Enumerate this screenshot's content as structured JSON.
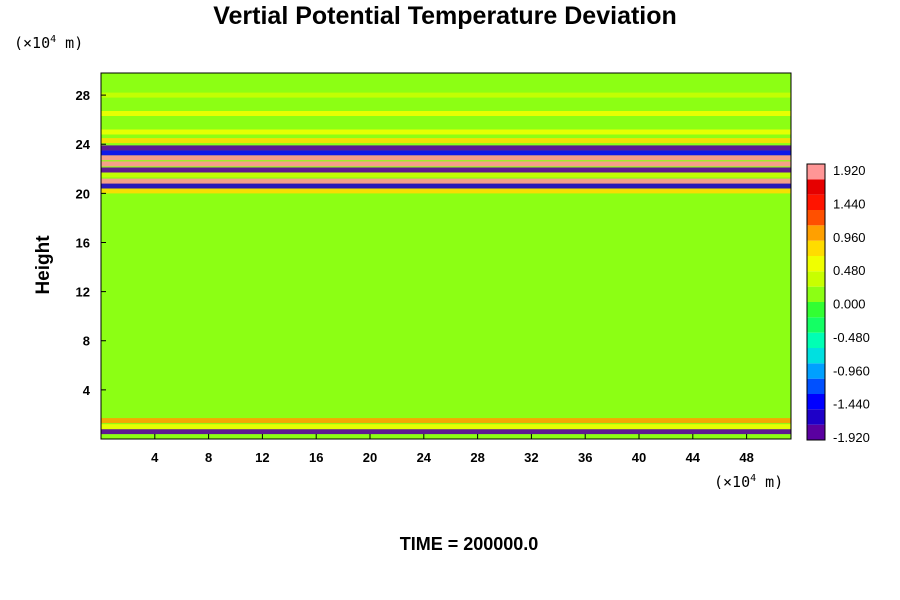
{
  "chart_data": {
    "type": "heatmap",
    "title": "Vertial Potential Temperature Deviation",
    "ylabel": "Height",
    "x_unit": {
      "prefix": "(×10",
      "exponent": "4",
      "suffix": " m)"
    },
    "y_unit": {
      "prefix": "(×10",
      "exponent": "4",
      "suffix": " m)"
    },
    "x_ticks": [
      4,
      8,
      12,
      16,
      20,
      24,
      28,
      32,
      36,
      40,
      44,
      48
    ],
    "y_ticks": [
      4,
      8,
      12,
      16,
      20,
      24,
      28
    ],
    "xlim": [
      0,
      51.3
    ],
    "ylim": [
      0,
      29.8
    ],
    "colorbar": {
      "range": [
        -2.08,
        2.08
      ],
      "labels": [
        "1.920",
        "1.440",
        "0.960",
        "0.480",
        "0.000",
        "-0.480",
        "-0.960",
        "-1.440",
        "-1.920"
      ],
      "colors": [
        "#5a00a0",
        "#1e00c8",
        "#0000ff",
        "#0050ff",
        "#00a0ff",
        "#00e0e0",
        "#00ffb4",
        "#14ff64",
        "#32ff32",
        "#8cff14",
        "#c8ff00",
        "#f0ff00",
        "#ffdc00",
        "#ffa000",
        "#ff5000",
        "#ff1400",
        "#e60000",
        "#ff9696"
      ]
    },
    "bands": [
      {
        "y": 0.6,
        "value": -1.9
      },
      {
        "y": 1.0,
        "value": 0.5
      },
      {
        "y": 1.5,
        "value": 1.1
      },
      {
        "y": 20.2,
        "value": 0.9
      },
      {
        "y": 20.6,
        "value": -1.8
      },
      {
        "y": 21.0,
        "value": 1.9
      },
      {
        "y": 21.5,
        "value": 0.4
      },
      {
        "y": 21.9,
        "value": -1.9
      },
      {
        "y": 22.4,
        "value": 1.9
      },
      {
        "y": 22.9,
        "value": 1.9
      },
      {
        "y": 23.3,
        "value": -1.5
      },
      {
        "y": 23.7,
        "value": -1.9
      },
      {
        "y": 24.3,
        "value": 0.9
      },
      {
        "y": 25.0,
        "value": 0.6
      },
      {
        "y": 26.5,
        "value": 0.5
      },
      {
        "y": 28.0,
        "value": 0.3
      }
    ],
    "background_value": 0.0,
    "time_label": "TIME = 200000.0"
  }
}
